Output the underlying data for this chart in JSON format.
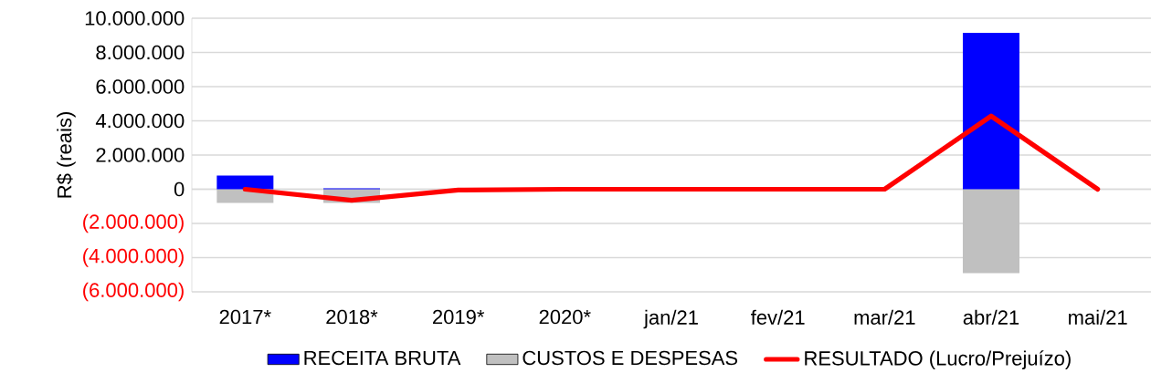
{
  "chart_data": {
    "type": "bar",
    "ylabel": "R$ (reais)",
    "categories": [
      "2017*",
      "2018*",
      "2019*",
      "2020*",
      "jan/21",
      "fev/21",
      "mar/21",
      "abr/21",
      "mai/21"
    ],
    "series": [
      {
        "name": "RECEITA BRUTA",
        "color": "#0000ff",
        "values": [
          800000,
          50000,
          0,
          0,
          0,
          0,
          0,
          9150000,
          0
        ]
      },
      {
        "name": "CUSTOS E DESPESAS",
        "color": "#c0c0c0",
        "values": [
          -800000,
          -800000,
          0,
          0,
          0,
          0,
          0,
          -4900000,
          0
        ]
      },
      {
        "name": "RESULTADO (Lucro/Prejuízo)",
        "color": "#ff0000",
        "type": "line",
        "values": [
          0,
          -650000,
          -50000,
          0,
          0,
          0,
          0,
          4280000,
          0
        ]
      }
    ],
    "stacked": true,
    "ylim": [
      -6000000,
      10000000
    ],
    "yticks": [
      {
        "value": -6000000,
        "label": "(6.000.000)"
      },
      {
        "value": -4000000,
        "label": "(4.000.000)"
      },
      {
        "value": -2000000,
        "label": "(2.000.000)"
      },
      {
        "value": 0,
        "label": "0"
      },
      {
        "value": 2000000,
        "label": "2.000.000"
      },
      {
        "value": 4000000,
        "label": "4.000.000"
      },
      {
        "value": 6000000,
        "label": "6.000.000"
      },
      {
        "value": 8000000,
        "label": "8.000.000"
      },
      {
        "value": 10000000,
        "label": "10.000.000"
      }
    ],
    "grid": "y",
    "legend": "bottom",
    "marker": "none",
    "line_style": "solid"
  }
}
